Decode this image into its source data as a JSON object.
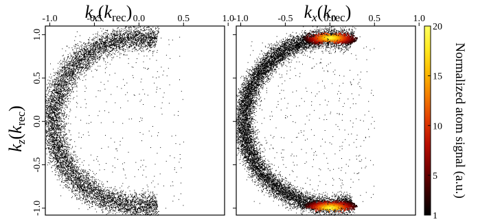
{
  "chart_data": [
    {
      "type": "scatter",
      "panel": "left",
      "xlabel": {
        "var": "k",
        "sub": "x",
        "unit_var": "k",
        "unit_sub": "rec"
      },
      "ylabel": {
        "var": "k",
        "sub": "z",
        "unit_var": "k",
        "unit_sub": "rec"
      },
      "xlim": [
        -1.05,
        0.96
      ],
      "ylim": [
        -1.08,
        1.1
      ],
      "x_ticks": [
        -1.0,
        -0.5,
        0.0,
        0.5,
        1.0
      ],
      "x_tick_labels": [
        "-1.0",
        "-0.5",
        "0.0",
        "0.5",
        "1.0"
      ],
      "y_ticks": [
        1.0,
        0.5,
        0.0,
        -0.5,
        -1.0
      ],
      "y_tick_labels": [
        "1.0",
        "0.5",
        "0.0",
        "-0.5",
        "-1.0"
      ],
      "distribution": {
        "shape": "C-shaped ring (left half of a circle)",
        "center": [
          0.0,
          0.0
        ],
        "radius": 0.97,
        "angle_range_deg": [
          78,
          282
        ],
        "radial_spread": 0.07,
        "sparse_interior_points": true,
        "color": "#000000"
      }
    },
    {
      "type": "scatter",
      "panel": "right",
      "xlabel": {
        "var": "k",
        "sub": "x",
        "unit_var": "k",
        "unit_sub": "rec"
      },
      "xlim": [
        -1.05,
        0.96
      ],
      "ylim": [
        -1.08,
        1.1
      ],
      "x_ticks": [
        -1.0,
        -0.5,
        0.0,
        0.5,
        1.0
      ],
      "x_tick_labels": [
        "-1.0",
        "-0.5",
        "0.0",
        "0.5",
        "1.0"
      ],
      "distribution": {
        "shape": "C-shaped ring (left half of a circle)",
        "center": [
          0.0,
          0.0
        ],
        "radius": 0.97,
        "angle_range_deg": [
          75,
          285
        ],
        "radial_spread": 0.055,
        "sparse_interior_points": true,
        "hot_spots": [
          {
            "x": 0.0,
            "y": 0.97,
            "peak_signal": 20
          },
          {
            "x": 0.0,
            "y": -0.99,
            "peak_signal": 20
          }
        ]
      }
    }
  ],
  "colorbar": {
    "label": "Normalized atom signal (a.u.)",
    "min": 1,
    "max": 20,
    "ticks": [
      1,
      5,
      10,
      15,
      20
    ],
    "tick_labels": [
      "1",
      "5",
      "10",
      "15",
      "20"
    ],
    "colormap": [
      "#000000",
      "#3a0000",
      "#7a0000",
      "#b80e00",
      "#e03a00",
      "#f27a00",
      "#fbb800",
      "#ffe820",
      "#ffff60"
    ]
  }
}
